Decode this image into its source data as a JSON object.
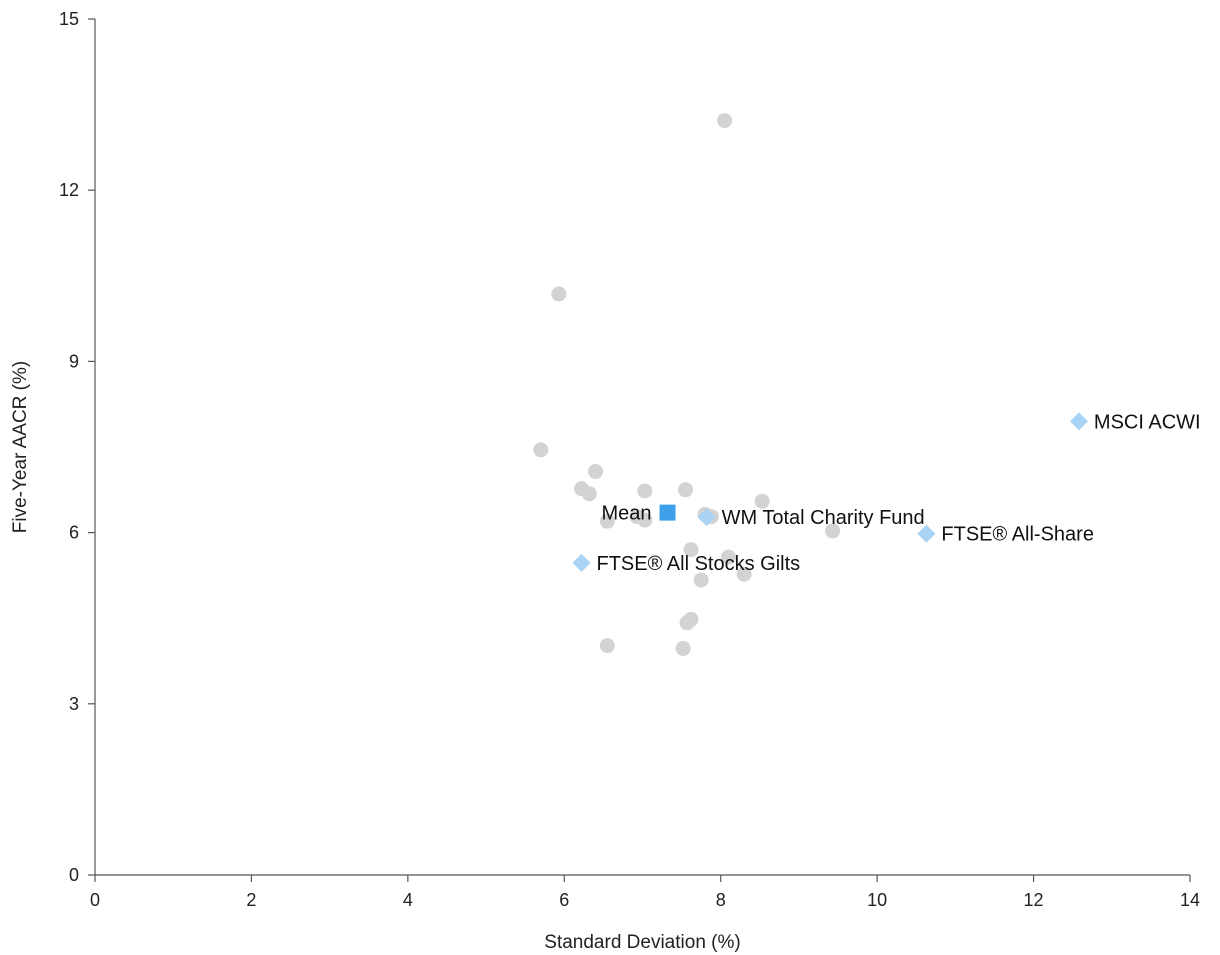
{
  "chart_data": {
    "type": "scatter",
    "xlabel": "Standard Deviation (%)",
    "ylabel": "Five-Year AACR (%)",
    "xlim": [
      0,
      14
    ],
    "ylim": [
      0,
      15
    ],
    "xticks": [
      0,
      2,
      4,
      6,
      8,
      10,
      12,
      14
    ],
    "yticks": [
      0,
      3,
      6,
      9,
      12,
      15
    ],
    "grid": false,
    "colors": {
      "funds": "#d3d3d3",
      "indices": "#a9d4f5",
      "mean": "#3fa0ea",
      "axis": "#555555"
    },
    "series": [
      {
        "marker": "circle",
        "points": [
          {
            "x": 8.05,
            "y": 13.22
          },
          {
            "x": 5.93,
            "y": 10.18
          },
          {
            "x": 5.7,
            "y": 7.45
          },
          {
            "x": 6.4,
            "y": 7.07
          },
          {
            "x": 6.22,
            "y": 6.77
          },
          {
            "x": 6.32,
            "y": 6.68
          },
          {
            "x": 7.03,
            "y": 6.73
          },
          {
            "x": 7.55,
            "y": 6.75
          },
          {
            "x": 8.53,
            "y": 6.55
          },
          {
            "x": 6.55,
            "y": 6.2
          },
          {
            "x": 6.93,
            "y": 6.28
          },
          {
            "x": 7.03,
            "y": 6.22
          },
          {
            "x": 7.8,
            "y": 6.32
          },
          {
            "x": 7.88,
            "y": 6.28
          },
          {
            "x": 9.43,
            "y": 6.03
          },
          {
            "x": 7.62,
            "y": 5.7
          },
          {
            "x": 8.1,
            "y": 5.57
          },
          {
            "x": 8.3,
            "y": 5.27
          },
          {
            "x": 7.75,
            "y": 5.17
          },
          {
            "x": 7.62,
            "y": 4.48
          },
          {
            "x": 7.57,
            "y": 4.42
          },
          {
            "x": 6.55,
            "y": 4.02
          },
          {
            "x": 7.52,
            "y": 3.97
          }
        ]
      },
      {
        "marker": "diamond",
        "points": [
          {
            "x": 12.58,
            "y": 7.95,
            "label": "MSCI ACWI",
            "label_side": "right"
          },
          {
            "x": 10.63,
            "y": 5.98,
            "label": "FTSE® All-Share",
            "label_side": "right"
          },
          {
            "x": 6.22,
            "y": 5.47,
            "label": "FTSE® All Stocks Gilts",
            "label_side": "right"
          },
          {
            "x": 7.82,
            "y": 6.27,
            "label": "WM Total Charity Fund",
            "label_side": "right"
          }
        ]
      },
      {
        "marker": "square",
        "points": [
          {
            "x": 7.32,
            "y": 6.35,
            "label": "Mean",
            "label_side": "left"
          }
        ]
      }
    ]
  }
}
